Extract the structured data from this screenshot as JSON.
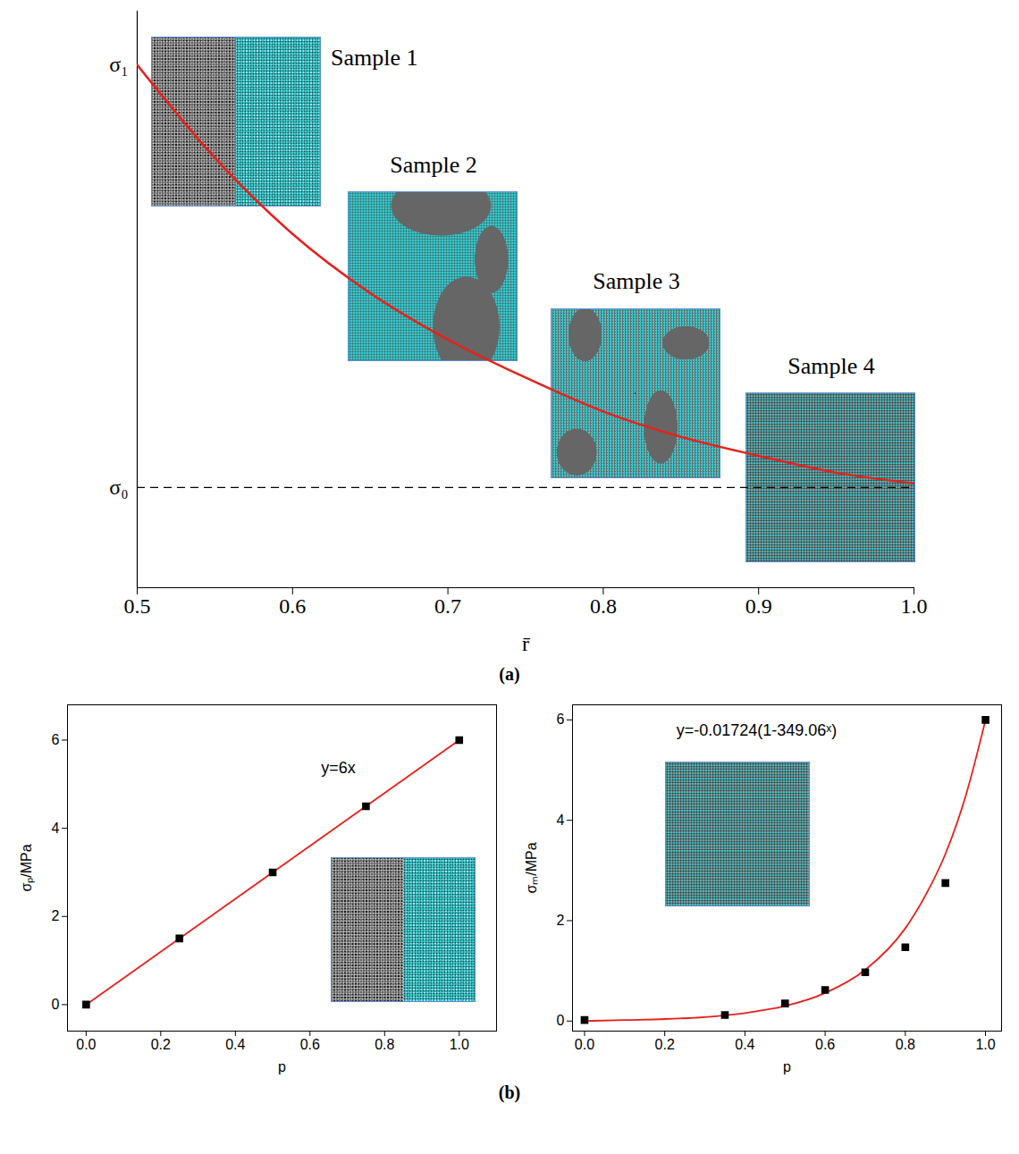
{
  "chart_data": [
    {
      "type": "line",
      "x_label": "r̄",
      "x": [
        0.5,
        0.55,
        0.6,
        0.65,
        0.7,
        0.75,
        0.8,
        0.85,
        0.9,
        0.95,
        1.0
      ],
      "values": [
        1.0,
        0.78,
        0.6,
        0.46,
        0.35,
        0.26,
        0.18,
        0.12,
        0.075,
        0.035,
        0.01
      ],
      "color": "#e8201a",
      "xlim": [
        0.5,
        1.0
      ],
      "xticks": [
        0.5,
        0.6,
        0.7,
        0.8,
        0.9,
        {
          "value": 1.0,
          "label": "1.0"
        }
      ],
      "ylim": [
        -0.237,
        1.127
      ],
      "yticks": [
        {
          "value": 1,
          "label": "σ₁"
        },
        {
          "value": 0,
          "label": "σ₀"
        }
      ],
      "hline": {
        "value": 0,
        "line_style": "dashed",
        "color": "#000000"
      },
      "insets": [
        "Sample 1",
        "Sample 2",
        "Sample 3",
        "Sample 4"
      ]
    },
    {
      "type": "scatter",
      "x_label": "p",
      "y_label": "σₚ/MPa",
      "annotation": "y=6x",
      "series": [
        {
          "type": "line",
          "color": "#e8201a",
          "x": [
            0,
            1
          ],
          "values": [
            0,
            6
          ]
        },
        {
          "type": "scatter",
          "marker": "square",
          "color": "#000000",
          "x": [
            0,
            0.25,
            0.5,
            0.75,
            1.0
          ],
          "values": [
            0,
            1.5,
            3,
            4.5,
            6
          ]
        }
      ],
      "xlim": [
        -0.05,
        1.1
      ],
      "xticks": [
        {
          "value": 0,
          "label": "0.0"
        },
        0.2,
        0.4,
        0.6,
        0.8,
        {
          "value": 1.0,
          "label": "1.0"
        }
      ],
      "ylim": [
        -0.6,
        6.8
      ],
      "yticks": [
        0,
        2,
        4,
        6
      ]
    },
    {
      "type": "scatter",
      "x_label": "p",
      "y_label": "σₘ/MPa",
      "annotation": "y=-0.01724(1-349.06ˣ)",
      "series": [
        {
          "type": "line",
          "color": "#e8201a",
          "x": [
            0,
            0.1,
            0.2,
            0.3,
            0.4,
            0.5,
            0.6,
            0.7,
            0.8,
            0.85,
            0.9,
            0.95,
            1.0
          ],
          "values": [
            0,
            0.02,
            0.04,
            0.08,
            0.16,
            0.3,
            0.56,
            1.02,
            1.85,
            2.5,
            3.33,
            4.47,
            6.0
          ]
        },
        {
          "type": "scatter",
          "marker": "square",
          "color": "#000000",
          "x": [
            0,
            0.35,
            0.5,
            0.6,
            0.7,
            0.8,
            0.9,
            1.0
          ],
          "values": [
            0.02,
            0.12,
            0.35,
            0.62,
            0.97,
            1.47,
            2.75,
            6.0
          ]
        }
      ],
      "xlim": [
        -0.03,
        1.04
      ],
      "xticks": [
        {
          "value": 0,
          "label": "0.0"
        },
        0.2,
        0.4,
        0.6,
        0.8,
        {
          "value": 1.0,
          "label": "1.0"
        }
      ],
      "ylim": [
        -0.2,
        6.3
      ],
      "yticks": [
        0,
        2,
        4,
        6
      ]
    }
  ],
  "panel_labels": [
    "(a)",
    "(b)"
  ]
}
